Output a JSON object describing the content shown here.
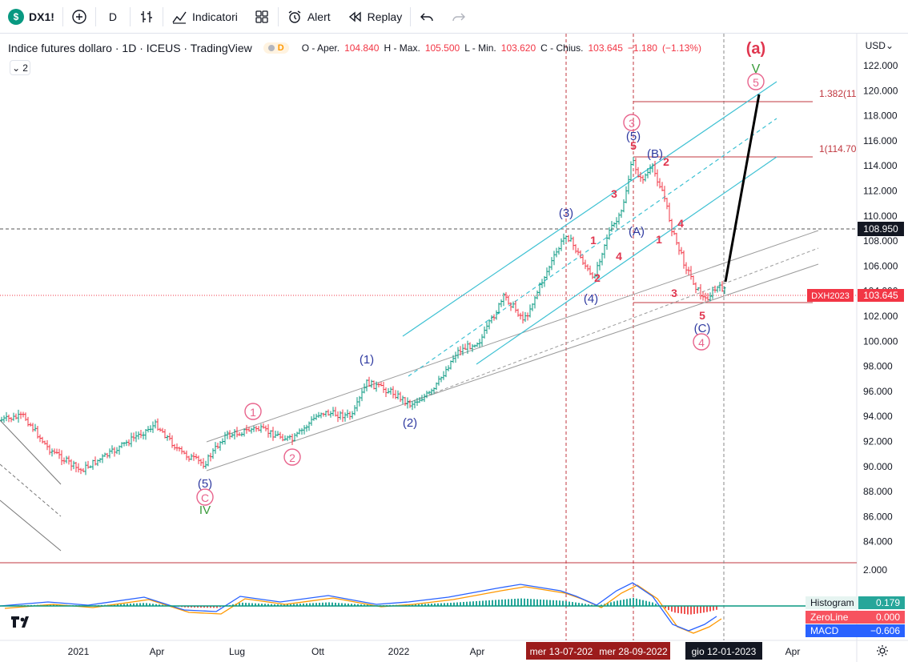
{
  "toolbar": {
    "symbol": "DX1!",
    "symbol_badge": "$",
    "interval": "D",
    "indicators_label": "Indicatori",
    "alert_label": "Alert",
    "replay_label": "Replay"
  },
  "legend": {
    "title": "Indice futures dollaro · 1D · ICEUS · TradingView",
    "badge": "D",
    "collapse_count": "2",
    "open_label": "O - Aper.",
    "open": "104.840",
    "high_label": "H - Max.",
    "high": "105.500",
    "low_label": "L - Min.",
    "low": "103.620",
    "close_label": "C - Chius.",
    "close": "103.645",
    "change": "−1.180",
    "change_pct": "(−1.13%)"
  },
  "price_axis": {
    "currency": "USD",
    "ticks": [
      "122.000",
      "120.000",
      "118.000",
      "116.000",
      "114.000",
      "112.000",
      "110.000",
      "108.000",
      "106.000",
      "104.000",
      "102.000",
      "100.000",
      "98.000",
      "96.000",
      "94.000",
      "92.000",
      "90.000",
      "88.000",
      "86.000",
      "84.000"
    ],
    "crosshair_price": "108.950",
    "last_price": "103.645",
    "last_symbol": "DXH2023"
  },
  "time_axis": {
    "ticks": [
      "2021",
      "Apr",
      "Lug",
      "Ott",
      "2022",
      "Apr",
      "Apr"
    ],
    "markers": [
      "mer 13-07-202",
      "mer 28-09-2022",
      "gio 12-01-2023"
    ]
  },
  "fib_labels": [
    "1.382(11",
    "1(114.70"
  ],
  "wave_labels": {
    "a": "(a)",
    "v": "V",
    "five_circle": "5",
    "three_circle": "3",
    "five_paren": "(5)",
    "five_small": "5",
    "B": "(B)",
    "two": "2",
    "three": "3",
    "p3": "(3)",
    "one": "1",
    "two_b": "2",
    "A": "(A)",
    "four": "4",
    "one_b": "1",
    "four_b": "4",
    "p4": "(4)",
    "three_b": "3",
    "five_b": "5",
    "C": "(C)",
    "four_circle": "4",
    "p1": "(1)",
    "p2": "(2)",
    "one_circle": "1",
    "two_circle": "2",
    "p5": "(5)",
    "C_circle": "C",
    "IV": "IV"
  },
  "macd": {
    "axis_tick": "2.000",
    "histogram_label": "Histogram",
    "histogram_value": "0.179",
    "zeroline_label": "ZeroLine",
    "zeroline_value": "0.000",
    "macd_label": "MACD",
    "macd_value": "−0.606"
  },
  "colors": {
    "up": "#089981",
    "down": "#f23645",
    "wave_blue": "#2f3aa0",
    "wave_red": "#e0364f",
    "wave_pink": "#e8638c",
    "channel_cyan": "#3ec1d3",
    "channel_gray": "#9b9b9b"
  }
}
